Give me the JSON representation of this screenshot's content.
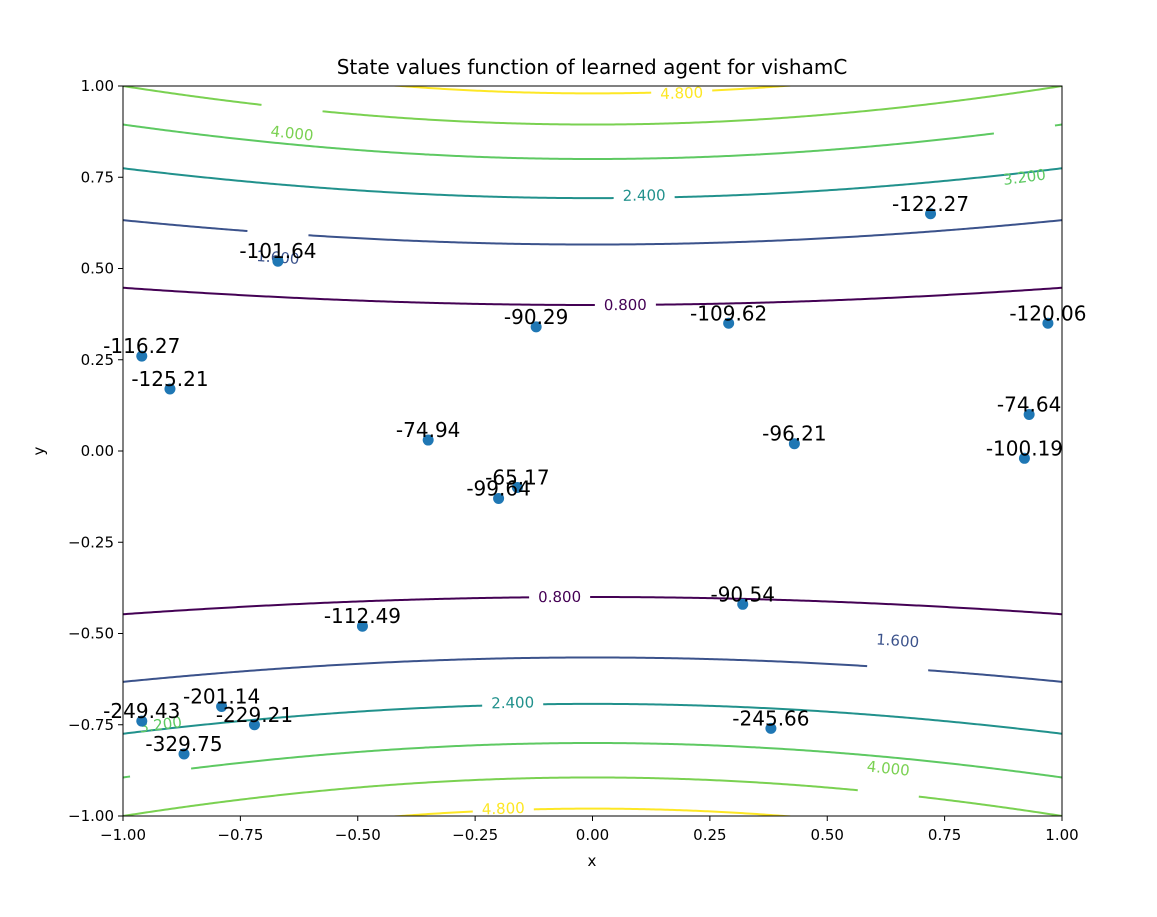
{
  "chart_data": {
    "type": "contour+scatter",
    "title": "State values function of learned agent for vishamC",
    "xlabel": "x",
    "ylabel": "y",
    "xlim": [
      -1.0,
      1.0
    ],
    "ylim": [
      -1.0,
      1.0
    ],
    "xticks": [
      "−1.00",
      "−0.75",
      "−0.50",
      "−0.25",
      "0.00",
      "0.25",
      "0.50",
      "0.75",
      "1.00"
    ],
    "yticks": [
      "−1.00",
      "−0.75",
      "−0.50",
      "−0.25",
      "0.00",
      "0.25",
      "0.50",
      "0.75",
      "1.00"
    ],
    "grid": false,
    "contour_levels": [
      {
        "level": 0.8,
        "label": "0.800",
        "color": "#440154"
      },
      {
        "level": 1.6,
        "label": "1.600",
        "color": "#3b528b"
      },
      {
        "level": 2.4,
        "label": "2.400",
        "color": "#21918c"
      },
      {
        "level": 3.2,
        "label": "3.200",
        "color": "#5ec962"
      },
      {
        "level": 4.0,
        "label": "4.000",
        "color": "#7ad151"
      },
      {
        "level": 4.8,
        "label": "4.800",
        "color": "#fde725"
      }
    ],
    "contour_label_positions": [
      {
        "label": "4.800",
        "x": 0.19,
        "y": 0.98
      },
      {
        "label": "4.000",
        "x": -0.64,
        "y": 0.87
      },
      {
        "label": "3.200",
        "x": 0.92,
        "y": 0.75
      },
      {
        "label": "2.400",
        "x": 0.11,
        "y": 0.7
      },
      {
        "label": "1.600",
        "x": -0.67,
        "y": 0.53
      },
      {
        "label": "0.800",
        "x": 0.07,
        "y": 0.4
      },
      {
        "label": "0.800",
        "x": -0.07,
        "y": -0.4
      },
      {
        "label": "1.600",
        "x": 0.65,
        "y": -0.52
      },
      {
        "label": "2.400",
        "x": -0.17,
        "y": -0.69
      },
      {
        "label": "3.200",
        "x": -0.92,
        "y": -0.75
      },
      {
        "label": "4.000",
        "x": 0.63,
        "y": -0.87
      },
      {
        "label": "4.800",
        "x": -0.19,
        "y": -0.98
      }
    ],
    "points_color": "#1f77b4",
    "points": [
      {
        "x": 0.72,
        "y": 0.65,
        "label": "-122.27"
      },
      {
        "x": -0.67,
        "y": 0.52,
        "label": "-101.64"
      },
      {
        "x": -0.12,
        "y": 0.34,
        "label": "-90.29"
      },
      {
        "x": 0.29,
        "y": 0.35,
        "label": "-109.62"
      },
      {
        "x": 0.97,
        "y": 0.35,
        "label": "-120.06"
      },
      {
        "x": -0.96,
        "y": 0.26,
        "label": "-116.27"
      },
      {
        "x": -0.9,
        "y": 0.17,
        "label": "-125.21"
      },
      {
        "x": 0.93,
        "y": 0.1,
        "label": "-74.64"
      },
      {
        "x": -0.35,
        "y": 0.03,
        "label": "-74.94"
      },
      {
        "x": 0.43,
        "y": 0.02,
        "label": "-96.21"
      },
      {
        "x": 0.92,
        "y": -0.02,
        "label": "-100.19"
      },
      {
        "x": -0.16,
        "y": -0.1,
        "label": "-65.17"
      },
      {
        "x": -0.2,
        "y": -0.13,
        "label": "-99.64"
      },
      {
        "x": 0.32,
        "y": -0.42,
        "label": "-90.54"
      },
      {
        "x": -0.49,
        "y": -0.48,
        "label": "-112.49"
      },
      {
        "x": -0.79,
        "y": -0.7,
        "label": "-201.14"
      },
      {
        "x": -0.96,
        "y": -0.74,
        "label": "-249.43"
      },
      {
        "x": -0.72,
        "y": -0.75,
        "label": "-229.21"
      },
      {
        "x": 0.38,
        "y": -0.76,
        "label": "-245.66"
      },
      {
        "x": -0.87,
        "y": -0.83,
        "label": "-329.75"
      }
    ]
  }
}
